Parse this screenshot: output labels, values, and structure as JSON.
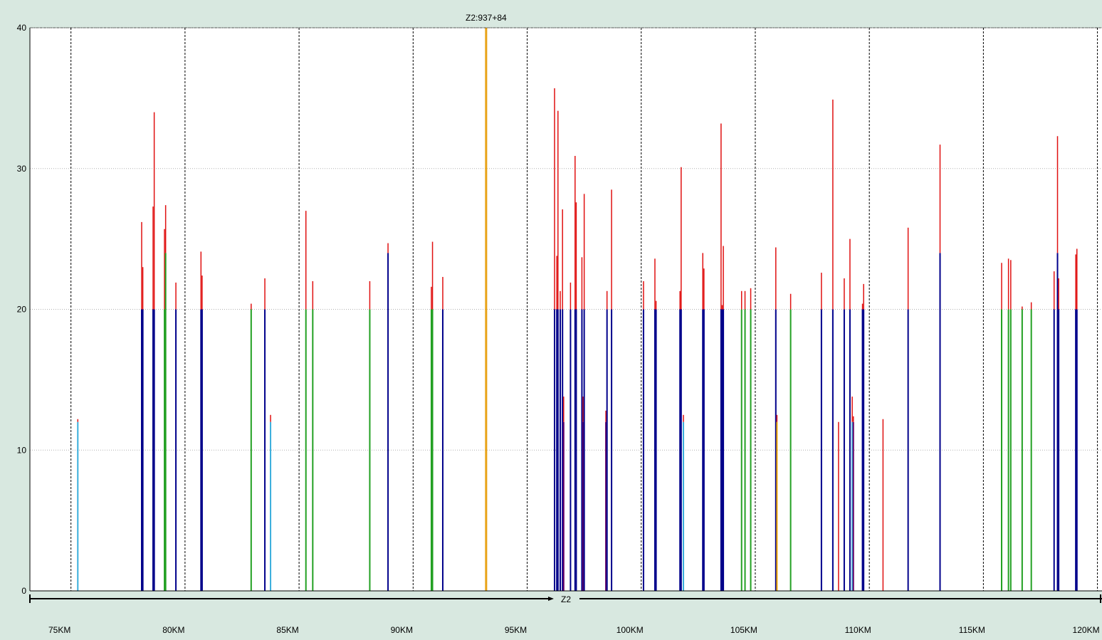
{
  "chart_data": {
    "type": "bar",
    "title": "",
    "xlabel": "",
    "ylabel": "",
    "ylim": [
      0,
      40
    ],
    "xlim": [
      73.7,
      120.7
    ],
    "grid": true,
    "y_ticks": [
      "0",
      "10",
      "20",
      "30",
      "40"
    ],
    "x_ticks": [
      "75KM",
      "80KM",
      "85KM",
      "90KM",
      "95KM",
      "100KM",
      "105KM",
      "110KM",
      "115KM",
      "120KM"
    ],
    "x_tick_values": [
      75,
      80,
      85,
      90,
      95,
      100,
      105,
      110,
      115,
      120
    ],
    "marker": {
      "label": "Z2:937+84",
      "x": 93.7,
      "value": 40,
      "color": "#e8a317"
    },
    "track_label": "Z2",
    "colors": {
      "base_blue": "#00008b",
      "base_green": "#22a022",
      "base_cyan": "#3aaedc",
      "base_orange": "#f0a800",
      "base_purple": "#660066",
      "top_red": "#e01010"
    },
    "bars": [
      {
        "x": 75.8,
        "base": 12.0,
        "top": 12.2,
        "base_color": "base_cyan"
      },
      {
        "x": 78.6,
        "base": 20,
        "top": 26.2,
        "base_color": "base_blue"
      },
      {
        "x": 78.65,
        "base": 20,
        "top": 23.0,
        "base_color": "base_blue"
      },
      {
        "x": 79.1,
        "base": 20,
        "top": 27.3,
        "base_color": "base_blue"
      },
      {
        "x": 79.15,
        "base": 20,
        "top": 34.0,
        "base_color": "base_blue"
      },
      {
        "x": 79.6,
        "base": 20,
        "top": 25.7,
        "base_color": "base_green"
      },
      {
        "x": 79.65,
        "base": 24,
        "top": 27.4,
        "base_color": "base_green"
      },
      {
        "x": 80.1,
        "base": 20,
        "top": 21.9,
        "base_color": "base_blue"
      },
      {
        "x": 81.2,
        "base": 20,
        "top": 24.1,
        "base_color": "base_blue"
      },
      {
        "x": 81.25,
        "base": 20,
        "top": 22.4,
        "base_color": "base_blue"
      },
      {
        "x": 83.4,
        "base": 20,
        "top": 20.4,
        "base_color": "base_green"
      },
      {
        "x": 84.0,
        "base": 20,
        "top": 22.2,
        "base_color": "base_blue"
      },
      {
        "x": 84.25,
        "base": 12.0,
        "top": 12.5,
        "base_color": "base_cyan"
      },
      {
        "x": 85.8,
        "base": 20,
        "top": 27.0,
        "base_color": "base_green"
      },
      {
        "x": 86.1,
        "base": 20,
        "top": 22.0,
        "base_color": "base_green"
      },
      {
        "x": 88.6,
        "base": 20,
        "top": 22.0,
        "base_color": "base_green"
      },
      {
        "x": 89.4,
        "base": 24,
        "top": 24.7,
        "base_color": "base_blue"
      },
      {
        "x": 91.3,
        "base": 20,
        "top": 21.6,
        "base_color": "base_green"
      },
      {
        "x": 91.35,
        "base": 20,
        "top": 24.8,
        "base_color": "base_green"
      },
      {
        "x": 91.8,
        "base": 20,
        "top": 22.3,
        "base_color": "base_blue"
      },
      {
        "x": 96.7,
        "base": 20,
        "top": 35.7,
        "base_color": "base_blue"
      },
      {
        "x": 96.8,
        "base": 20,
        "top": 23.8,
        "base_color": "base_blue"
      },
      {
        "x": 96.85,
        "base": 20,
        "top": 34.1,
        "base_color": "base_blue"
      },
      {
        "x": 96.95,
        "base": 20,
        "top": 21.3,
        "base_color": "base_blue"
      },
      {
        "x": 97.05,
        "base": 20,
        "top": 27.1,
        "base_color": "base_blue"
      },
      {
        "x": 97.1,
        "base": 12.0,
        "top": 13.8,
        "base_color": "base_purple"
      },
      {
        "x": 97.4,
        "base": 20,
        "top": 21.9,
        "base_color": "base_blue"
      },
      {
        "x": 97.6,
        "base": 20,
        "top": 30.9,
        "base_color": "base_blue"
      },
      {
        "x": 97.65,
        "base": 20,
        "top": 27.6,
        "base_color": "base_blue"
      },
      {
        "x": 97.9,
        "base": 20,
        "top": 23.7,
        "base_color": "base_blue"
      },
      {
        "x": 97.95,
        "base": 12.0,
        "top": 13.8,
        "base_color": "base_purple"
      },
      {
        "x": 98.0,
        "base": 20,
        "top": 28.2,
        "base_color": "base_blue"
      },
      {
        "x": 98.95,
        "base": 12.0,
        "top": 12.8,
        "base_color": "base_purple"
      },
      {
        "x": 99.0,
        "base": 20,
        "top": 21.3,
        "base_color": "base_blue"
      },
      {
        "x": 99.2,
        "base": 20,
        "top": 28.5,
        "base_color": "base_blue"
      },
      {
        "x": 100.6,
        "base": 20,
        "top": 22.0,
        "base_color": "base_blue"
      },
      {
        "x": 101.1,
        "base": 20,
        "top": 23.6,
        "base_color": "base_blue"
      },
      {
        "x": 101.15,
        "base": 20,
        "top": 20.6,
        "base_color": "base_blue"
      },
      {
        "x": 102.2,
        "base": 20,
        "top": 21.3,
        "base_color": "base_blue"
      },
      {
        "x": 102.25,
        "base": 20,
        "top": 30.1,
        "base_color": "base_blue"
      },
      {
        "x": 102.35,
        "base": 12.0,
        "top": 12.5,
        "base_color": "base_cyan"
      },
      {
        "x": 103.2,
        "base": 20,
        "top": 24.0,
        "base_color": "base_blue"
      },
      {
        "x": 103.25,
        "base": 20,
        "top": 22.9,
        "base_color": "base_blue"
      },
      {
        "x": 104.0,
        "base": 20,
        "top": 33.2,
        "base_color": "base_blue"
      },
      {
        "x": 104.05,
        "base": 20,
        "top": 20.3,
        "base_color": "base_blue"
      },
      {
        "x": 104.1,
        "base": 20,
        "top": 24.5,
        "base_color": "base_blue"
      },
      {
        "x": 104.9,
        "base": 20,
        "top": 21.3,
        "base_color": "base_green"
      },
      {
        "x": 105.05,
        "base": 20,
        "top": 21.3,
        "base_color": "base_green"
      },
      {
        "x": 105.3,
        "base": 20,
        "top": 21.5,
        "base_color": "base_green"
      },
      {
        "x": 106.4,
        "base": 20,
        "top": 24.4,
        "base_color": "base_blue"
      },
      {
        "x": 106.45,
        "base": 12.0,
        "top": 12.5,
        "base_color": "base_orange"
      },
      {
        "x": 107.05,
        "base": 20,
        "top": 21.1,
        "base_color": "base_green"
      },
      {
        "x": 108.4,
        "base": 20,
        "top": 22.6,
        "base_color": "base_blue"
      },
      {
        "x": 108.9,
        "base": 20,
        "top": 34.9,
        "base_color": "base_blue"
      },
      {
        "x": 109.15,
        "base": 0,
        "top": 12.0,
        "base_color": "base_orange"
      },
      {
        "x": 109.4,
        "base": 20,
        "top": 22.2,
        "base_color": "base_blue"
      },
      {
        "x": 109.65,
        "base": 20,
        "top": 25.0,
        "base_color": "base_blue"
      },
      {
        "x": 109.75,
        "base": 12.0,
        "top": 13.8,
        "base_color": "base_cyan"
      },
      {
        "x": 109.8,
        "base": 12.0,
        "top": 12.4,
        "base_color": "base_purple"
      },
      {
        "x": 110.2,
        "base": 20,
        "top": 20.4,
        "base_color": "base_blue"
      },
      {
        "x": 110.25,
        "base": 20,
        "top": 21.8,
        "base_color": "base_blue"
      },
      {
        "x": 111.1,
        "base": 0,
        "top": 12.2,
        "base_color": "base_orange"
      },
      {
        "x": 112.2,
        "base": 20,
        "top": 25.8,
        "base_color": "base_blue"
      },
      {
        "x": 113.6,
        "base": 24,
        "top": 31.7,
        "base_color": "base_blue"
      },
      {
        "x": 116.3,
        "base": 20,
        "top": 23.3,
        "base_color": "base_green"
      },
      {
        "x": 116.6,
        "base": 20,
        "top": 23.6,
        "base_color": "base_green"
      },
      {
        "x": 116.7,
        "base": 20,
        "top": 23.5,
        "base_color": "base_green"
      },
      {
        "x": 117.2,
        "base": 20,
        "top": 20.2,
        "base_color": "base_green"
      },
      {
        "x": 117.6,
        "base": 20,
        "top": 20.5,
        "base_color": "base_green"
      },
      {
        "x": 118.6,
        "base": 20,
        "top": 22.7,
        "base_color": "base_blue"
      },
      {
        "x": 118.75,
        "base": 24,
        "top": 32.3,
        "base_color": "base_blue"
      },
      {
        "x": 118.8,
        "base": 20,
        "top": 22.2,
        "base_color": "base_blue"
      },
      {
        "x": 119.55,
        "base": 20,
        "top": 23.9,
        "base_color": "base_blue"
      },
      {
        "x": 119.6,
        "base": 20,
        "top": 24.3,
        "base_color": "base_blue"
      }
    ]
  }
}
